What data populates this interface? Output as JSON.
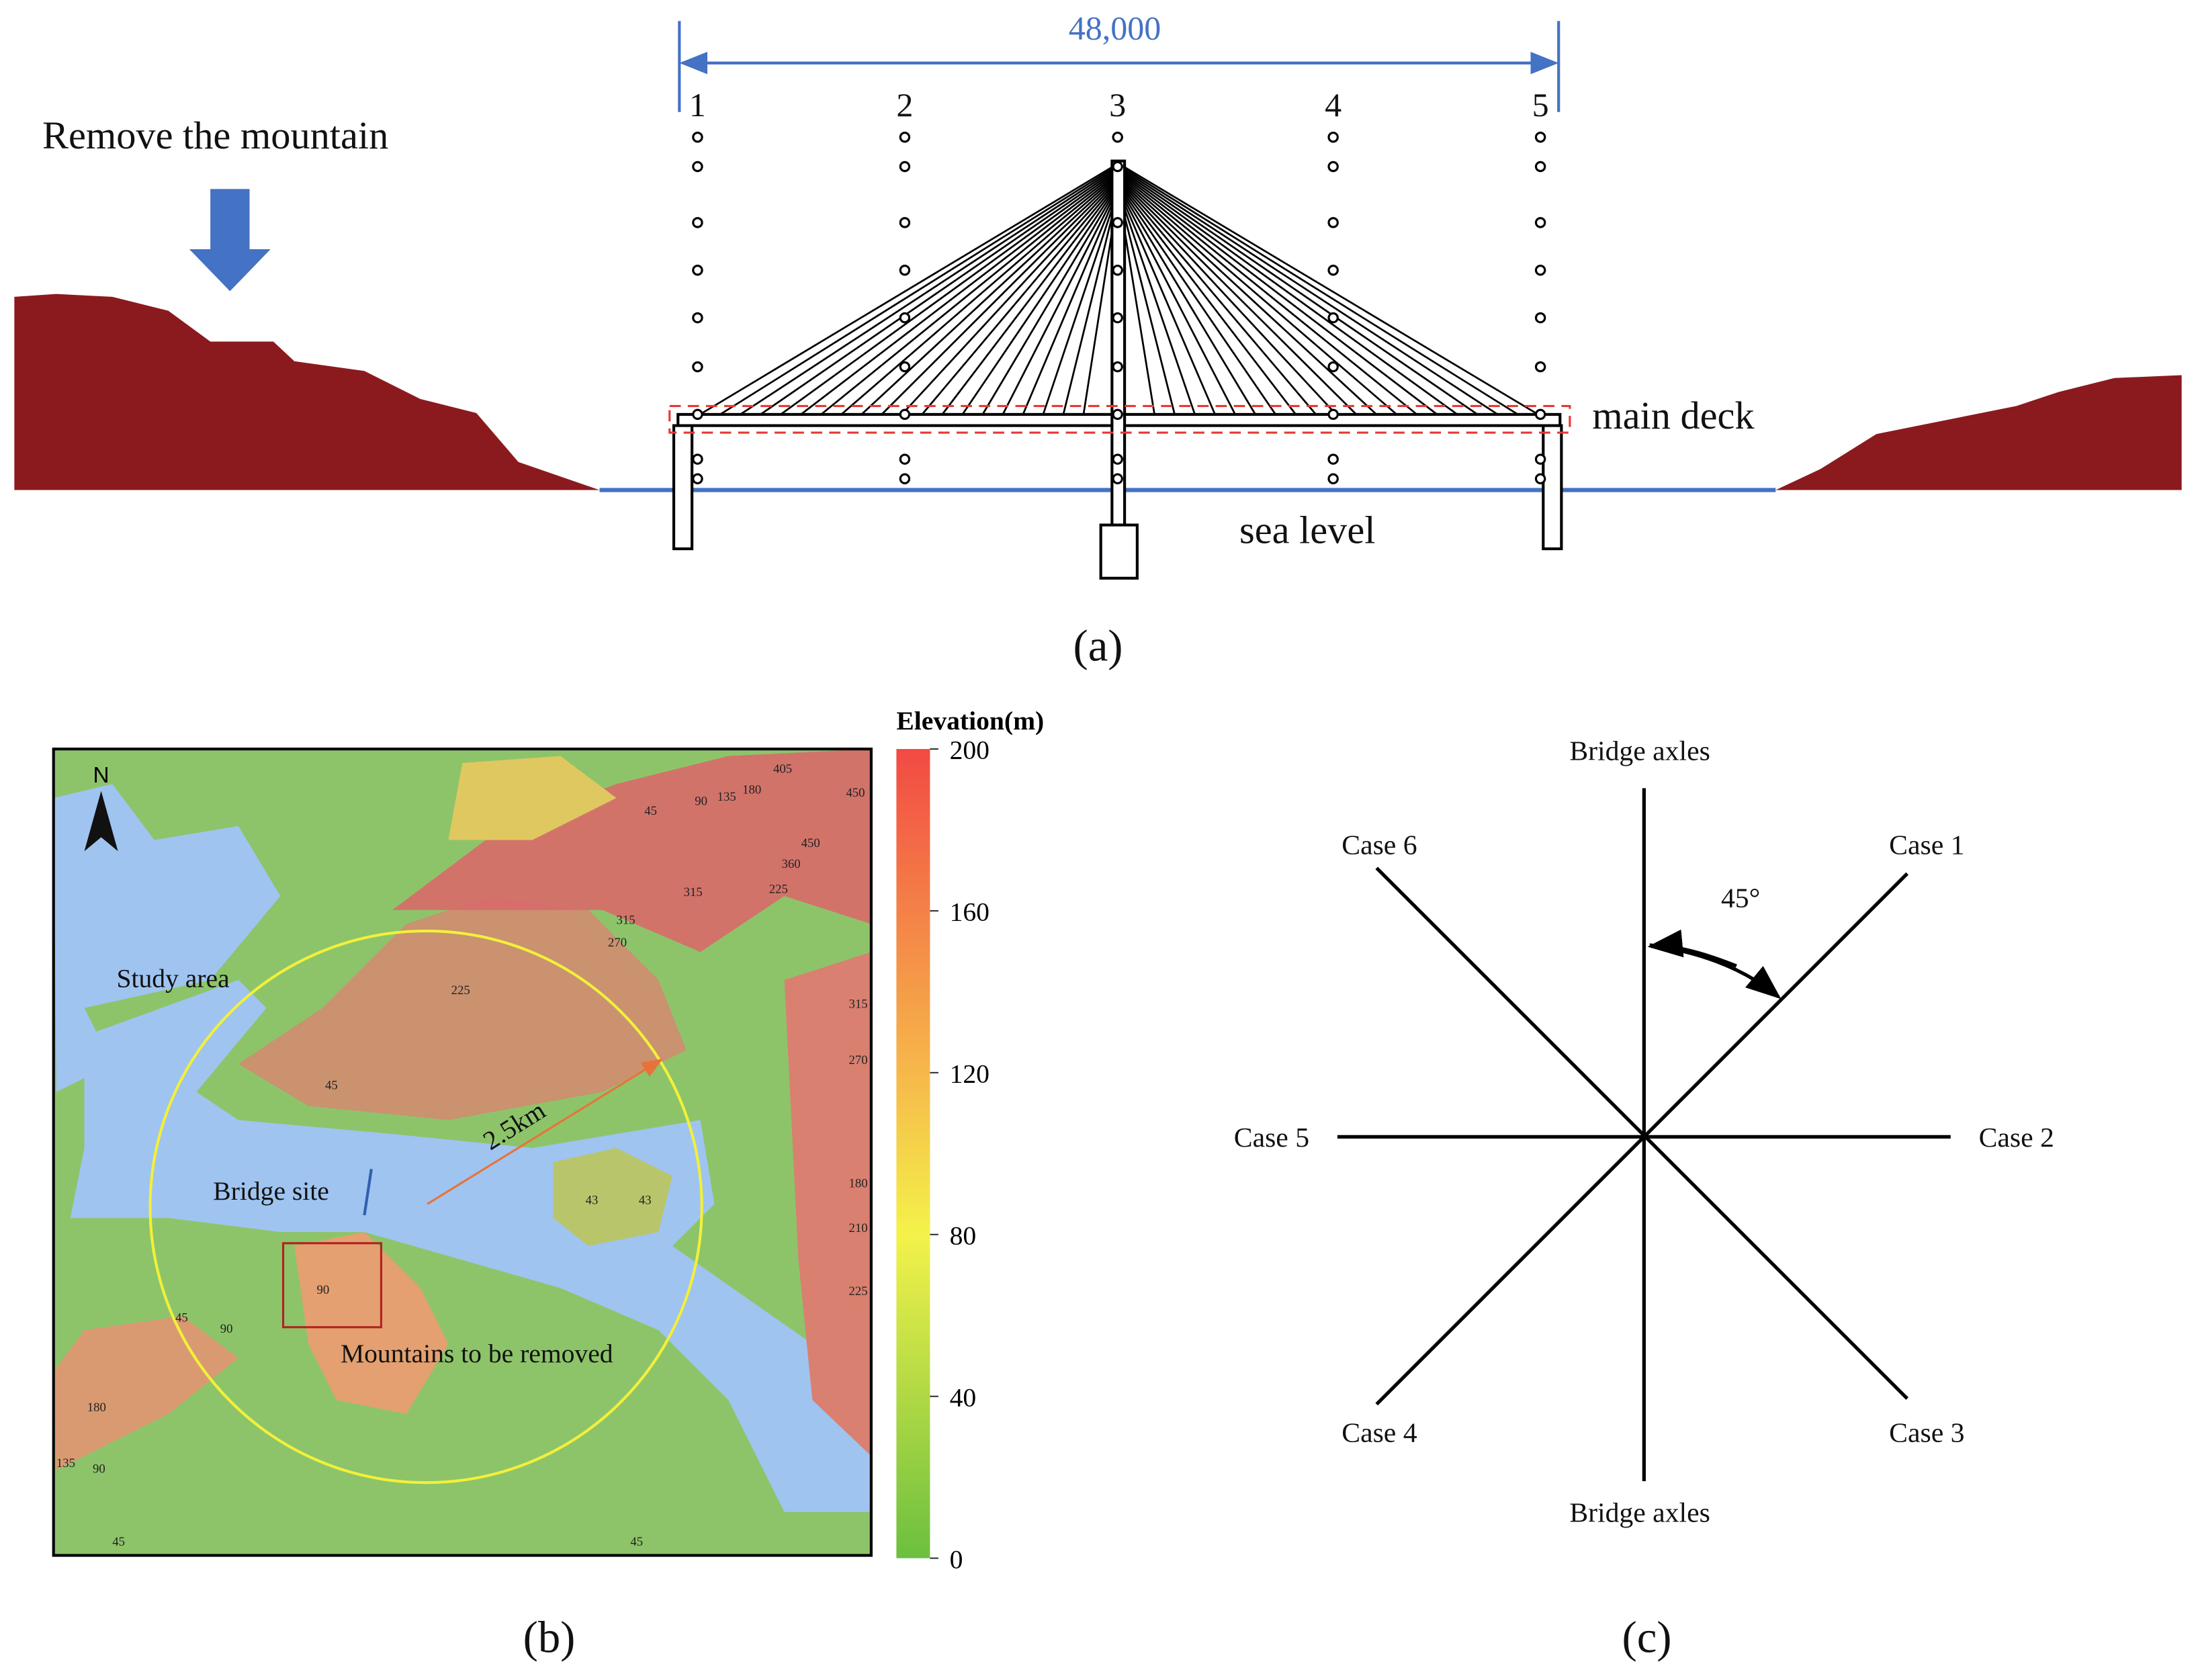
{
  "panel_a": {
    "span_label": "48,000",
    "tower_labels": [
      "1",
      "2",
      "3",
      "4",
      "5"
    ],
    "annotation": "Remove the mountain",
    "deck_label": "main deck",
    "sea_label": "sea level",
    "caption": "(a)"
  },
  "panel_b": {
    "north": "N",
    "study_area": "Study area",
    "bridge_site": "Bridge site",
    "mountains": "Mountains to be removed",
    "radius": "2.5km",
    "contour_labels": [
      "45",
      "90",
      "135",
      "180",
      "405",
      "450",
      "450",
      "360",
      "225",
      "315",
      "315",
      "270",
      "225",
      "315",
      "270",
      "45",
      "180",
      "210",
      "225",
      "43",
      "43",
      "90",
      "45",
      "90",
      "180",
      "135",
      "90",
      "45",
      "45"
    ],
    "colorbar": {
      "title": "Elevation(m)",
      "lim": [
        0,
        200
      ],
      "ticks": [
        0,
        40,
        80,
        120,
        160,
        200
      ]
    },
    "caption": "(b)"
  },
  "panel_c": {
    "axis_top": "Bridge axles",
    "axis_bottom": "Bridge axles",
    "angle": "45°",
    "cases": [
      "Case 1",
      "Case 2",
      "Case 3",
      "Case 4",
      "Case 5",
      "Case 6"
    ],
    "caption": "(c)"
  }
}
